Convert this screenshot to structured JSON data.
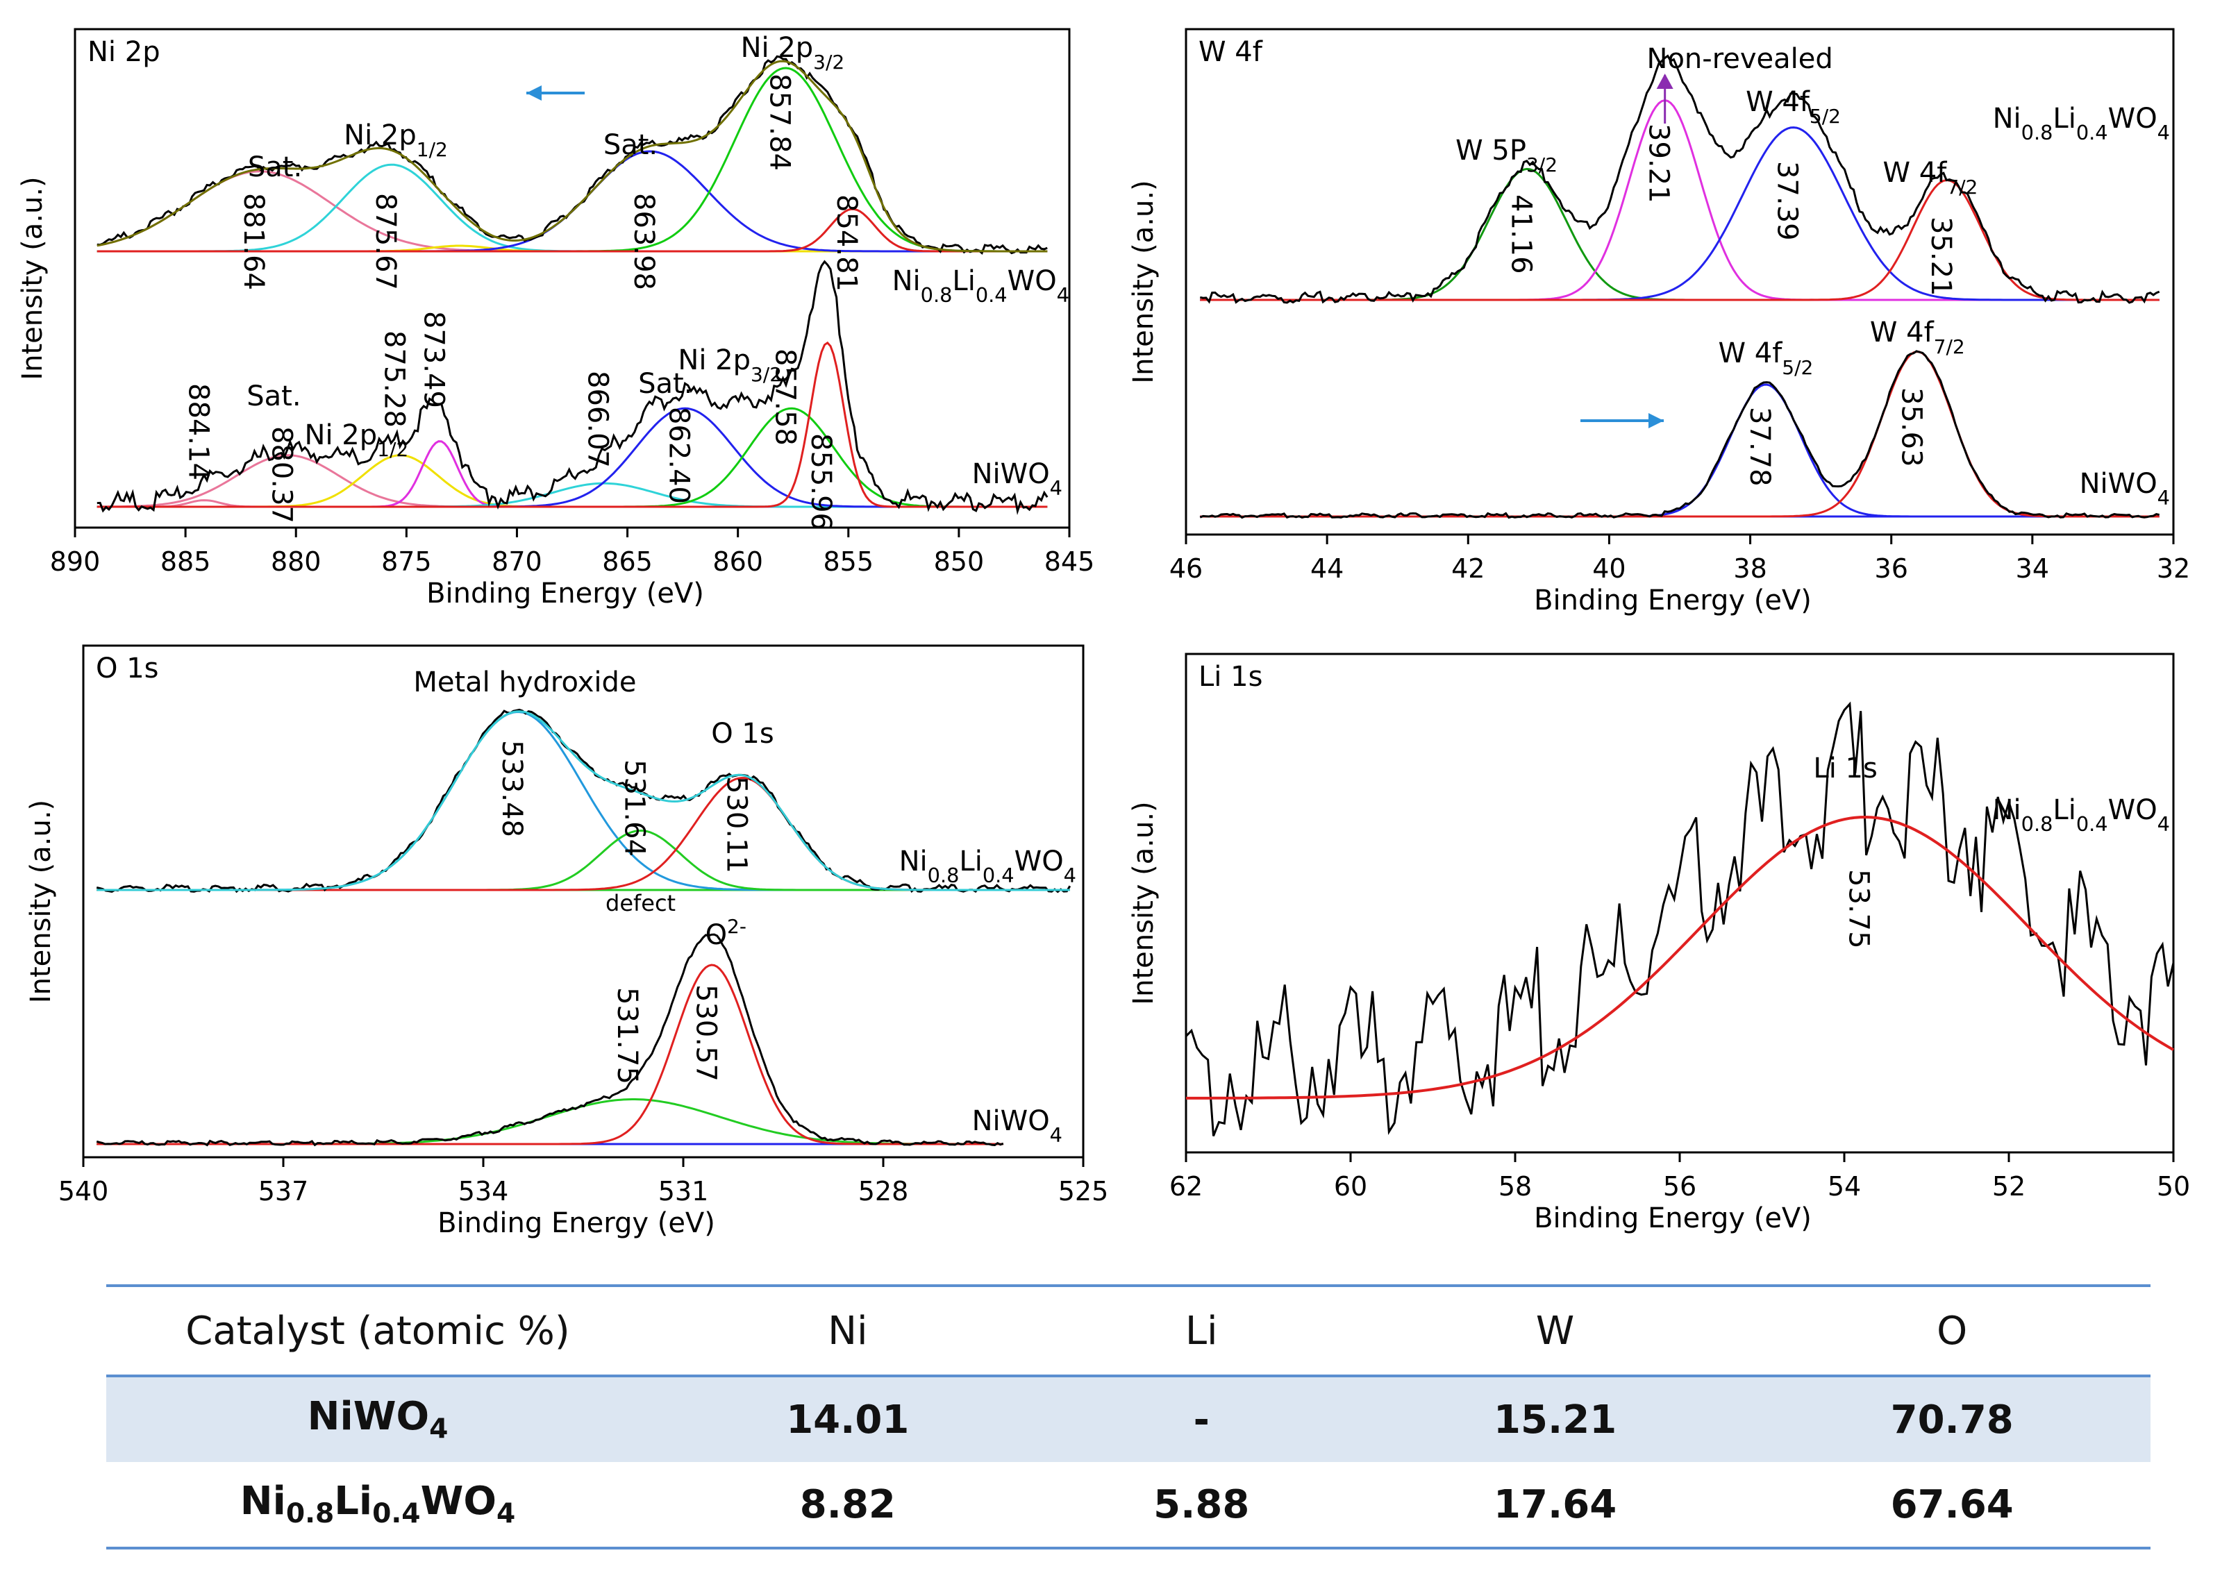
{
  "chart_data": [
    {
      "id": "ni2p",
      "type": "line",
      "panel_label": "Ni 2p",
      "xlabel": "Binding Energy (eV)",
      "ylabel": "Intensity (a.u.)",
      "xlim": [
        890,
        845
      ],
      "xticks": [
        890,
        885,
        880,
        875,
        870,
        865,
        860,
        855,
        850,
        845
      ],
      "sample_labels": [
        "Ni0.8Li0.4WO4",
        "NiWO4"
      ],
      "shift_arrow": "left",
      "fit_colors": {
        "satellite_hi": "#e9769a",
        "p12": "#2fd3d8",
        "satellite_lo": "#2222ee",
        "p32": "#11cc11",
        "p32b": "#e02020",
        "extra": "#f0e000",
        "envelope": "#707000"
      },
      "top_peaks": [
        {
          "center": 881.64,
          "label": "881.64",
          "annotation": "Sat."
        },
        {
          "center": 875.67,
          "label": "875.67",
          "annotation": "Ni 2p1/2"
        },
        {
          "center": 863.98,
          "label": "863.98",
          "annotation": "Sat."
        },
        {
          "center": 857.84,
          "label": "857.84",
          "annotation": "Ni 2p3/2"
        },
        {
          "center": 854.81,
          "label": "854.81",
          "annotation": ""
        }
      ],
      "bottom_peaks": [
        {
          "center": 884.14,
          "label": "884.14",
          "annotation": ""
        },
        {
          "center": 880.37,
          "label": "880.37",
          "annotation": "Sat."
        },
        {
          "center": 875.28,
          "label": "875.28",
          "annotation": ""
        },
        {
          "center": 873.49,
          "label": "873.49",
          "annotation": "Ni 2p1/2"
        },
        {
          "center": 866.07,
          "label": "866.07",
          "annotation": ""
        },
        {
          "center": 862.4,
          "label": "862.40",
          "annotation": "Sat."
        },
        {
          "center": 857.58,
          "label": "857.58",
          "annotation": ""
        },
        {
          "center": 855.96,
          "label": "855.96",
          "annotation": "Ni 2p3/2"
        }
      ]
    },
    {
      "id": "w4f",
      "type": "line",
      "panel_label": "W 4f",
      "xlabel": "Binding Energy (eV)",
      "ylabel": "Intensity (a.u.)",
      "xlim": [
        46,
        32
      ],
      "xticks": [
        46,
        44,
        42,
        40,
        38,
        36,
        34,
        32
      ],
      "sample_labels": [
        "Ni0.8Li0.4WO4",
        "NiWO4"
      ],
      "shift_arrow": "right",
      "top_annotation": "Non-revealed",
      "top_peaks": [
        {
          "center": 41.16,
          "label": "41.16",
          "annotation": "W 5P3/2"
        },
        {
          "center": 39.21,
          "label": "39.21",
          "annotation": ""
        },
        {
          "center": 37.39,
          "label": "37.39",
          "annotation": "W 4f5/2"
        },
        {
          "center": 35.21,
          "label": "35.21",
          "annotation": "W 4f7/2"
        }
      ],
      "bottom_peaks": [
        {
          "center": 37.78,
          "label": "37.78",
          "annotation": "W 4f5/2"
        },
        {
          "center": 35.63,
          "label": "35.63",
          "annotation": "W 4f7/2"
        }
      ]
    },
    {
      "id": "o1s",
      "type": "line",
      "panel_label": "O 1s",
      "xlabel": "Binding Energy (eV)",
      "ylabel": "Intensity (a.u.)",
      "xlim": [
        540,
        525
      ],
      "xticks": [
        540,
        537,
        534,
        531,
        528,
        525
      ],
      "sample_labels": [
        "Ni0.8Li0.4WO4",
        "NiWO4"
      ],
      "top_annotation": "Metal hydroxide",
      "defect_label": "defect",
      "top_peaks": [
        {
          "center": 533.48,
          "label": "533.48",
          "annotation": ""
        },
        {
          "center": 531.64,
          "label": "531.64",
          "annotation": ""
        },
        {
          "center": 530.11,
          "label": "530.11",
          "annotation": "O 1s"
        }
      ],
      "bottom_peaks": [
        {
          "center": 531.75,
          "label": "531.75",
          "annotation": ""
        },
        {
          "center": 530.57,
          "label": "530.57",
          "annotation": "O2-"
        }
      ]
    },
    {
      "id": "li1s",
      "type": "line",
      "panel_label": "Li 1s",
      "xlabel": "Binding Energy (eV)",
      "ylabel": "Intensity (a.u.)",
      "xlim": [
        62,
        50
      ],
      "xticks": [
        62,
        60,
        58,
        56,
        54,
        52,
        50
      ],
      "sample_labels": [
        "Ni0.8Li0.4WO4"
      ],
      "top_peaks": [
        {
          "center": 53.75,
          "label": "53.75",
          "annotation": "Li 1s"
        }
      ]
    },
    {
      "type": "table",
      "columns": [
        "Catalyst (atomic %)",
        "Ni",
        "Li",
        "W",
        "O"
      ],
      "rows": [
        [
          "NiWO4",
          "14.01",
          "-",
          "15.21",
          "70.78"
        ],
        [
          "Ni0.8Li0.4WO4",
          "8.82",
          "5.88",
          "17.64",
          "67.64"
        ]
      ]
    }
  ]
}
